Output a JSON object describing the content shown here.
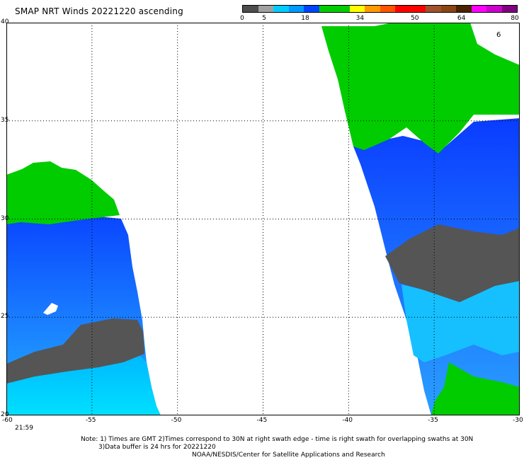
{
  "title": "SMAP NRT Winds 20221220 ascending",
  "colorbar": {
    "labels": [
      "0",
      "5",
      "18",
      "34",
      "50",
      "64",
      "80"
    ],
    "colors": [
      "#4d4d4d",
      "#a0a0a0",
      "#00ccff",
      "#0099ff",
      "#0044ff",
      "#00cc00",
      "#00cc00",
      "#ffff00",
      "#ff9900",
      "#ff5500",
      "#ff0000",
      "#ff0000",
      "#a0522d",
      "#8b4513",
      "#4a2200",
      "#ff00ff",
      "#cc00cc",
      "#800080"
    ]
  },
  "axes": {
    "x_ticks": [
      "-60",
      "-55",
      "-50",
      "-45",
      "-40",
      "-35",
      "-30"
    ],
    "y_ticks": [
      "40",
      "35",
      "30",
      "25",
      "20"
    ]
  },
  "time_label": "21:59",
  "notes": {
    "line1": "Note: 1) Times are GMT 2)Times correspond to 30N at right swath edge - time is right swath for overlapping swaths at 30N",
    "line2": "3)Data buffer is 24 hrs for 20221220",
    "line3": "NOAA/NESDIS/Center for Satellite Applications and Research"
  },
  "annotation": "6",
  "legend_colors": {
    "green": "#00cc00",
    "blue": "#1a56ff",
    "light_blue": "#00c8ff",
    "gray": "#555555"
  }
}
